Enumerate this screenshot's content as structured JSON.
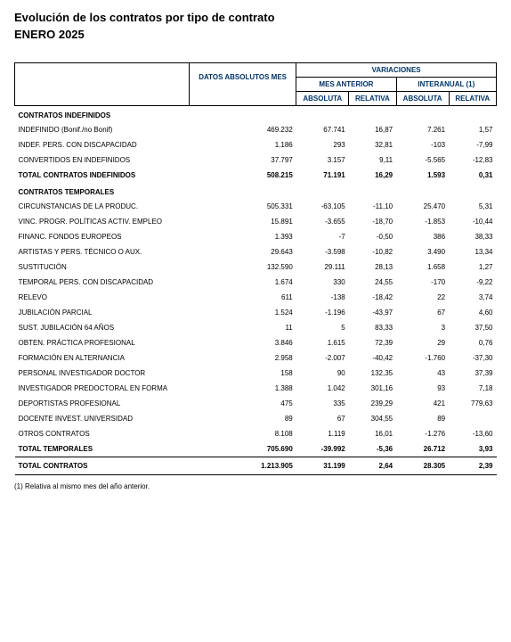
{
  "title": "Evolución de los contratos por tipo de contrato",
  "subtitle": "ENERO 2025",
  "headers": {
    "empty": "",
    "datos": "DATOS ABSOLUTOS MES",
    "variaciones": "VARIACIONES",
    "mes_anterior": "MES ANTERIOR",
    "interanual": "INTERANUAL (1)",
    "absoluta": "ABSOLUTA",
    "relativa": "RELATIVA"
  },
  "sections": {
    "indef_header": "CONTRATOS INDEFINIDOS",
    "temp_header": "CONTRATOS TEMPORALES"
  },
  "rows_indef": [
    {
      "label": "INDEFINIDO (Bonif./no Bonif)",
      "d": "469.232",
      "ma": "67.741",
      "mr": "16,87",
      "ia": "7.261",
      "ir": "1,57"
    },
    {
      "label": "INDEF. PERS. CON DISCAPACIDAD",
      "d": "1.186",
      "ma": "293",
      "mr": "32,81",
      "ia": "-103",
      "ir": "-7,99"
    },
    {
      "label": "CONVERTIDOS EN INDEFINIDOS",
      "d": "37.797",
      "ma": "3.157",
      "mr": "9,11",
      "ia": "-5.565",
      "ir": "-12,83"
    }
  ],
  "total_indef": {
    "label": "TOTAL CONTRATOS INDEFINIDOS",
    "d": "508.215",
    "ma": "71.191",
    "mr": "16,29",
    "ia": "1.593",
    "ir": "0,31"
  },
  "rows_temp": [
    {
      "label": "CIRCUNSTANCIAS DE LA PRODUC.",
      "d": "505.331",
      "ma": "-63.105",
      "mr": "-11,10",
      "ia": "25.470",
      "ir": "5,31"
    },
    {
      "label": "VINC. PROGR. POLÍTICAS ACTIV. EMPLEO",
      "d": "15.891",
      "ma": "-3.655",
      "mr": "-18,70",
      "ia": "-1.853",
      "ir": "-10,44"
    },
    {
      "label": "FINANC. FONDOS EUROPEOS",
      "d": "1.393",
      "ma": "-7",
      "mr": "-0,50",
      "ia": "386",
      "ir": "38,33"
    },
    {
      "label": "ARTISTAS Y PERS. TÉCNICO O AUX.",
      "d": "29.643",
      "ma": "-3.598",
      "mr": "-10,82",
      "ia": "3.490",
      "ir": "13,34"
    },
    {
      "label": "SUSTITUCIÓN",
      "d": "132.590",
      "ma": "29.111",
      "mr": "28,13",
      "ia": "1.658",
      "ir": "1,27"
    },
    {
      "label": "TEMPORAL PERS. CON DISCAPACIDAD",
      "d": "1.674",
      "ma": "330",
      "mr": "24,55",
      "ia": "-170",
      "ir": "-9,22"
    },
    {
      "label": "RELEVO",
      "d": "611",
      "ma": "-138",
      "mr": "-18,42",
      "ia": "22",
      "ir": "3,74"
    },
    {
      "label": "JUBILACIÓN PARCIAL",
      "d": "1.524",
      "ma": "-1.196",
      "mr": "-43,97",
      "ia": "67",
      "ir": "4,60"
    },
    {
      "label": "SUST. JUBILACIÓN 64 AÑOS",
      "d": "11",
      "ma": "5",
      "mr": "83,33",
      "ia": "3",
      "ir": "37,50"
    },
    {
      "label": "OBTEN. PRÁCTICA PROFESIONAL",
      "d": "3.846",
      "ma": "1.615",
      "mr": "72,39",
      "ia": "29",
      "ir": "0,76"
    },
    {
      "label": "FORMACIÓN EN ALTERNANCIA",
      "d": "2.958",
      "ma": "-2.007",
      "mr": "-40,42",
      "ia": "-1.760",
      "ir": "-37,30"
    },
    {
      "label": "PERSONAL INVESTIGADOR DOCTOR",
      "d": "158",
      "ma": "90",
      "mr": "132,35",
      "ia": "43",
      "ir": "37,39"
    },
    {
      "label": "INVESTIGADOR PREDOCTORAL EN FORMA",
      "d": "1.388",
      "ma": "1.042",
      "mr": "301,16",
      "ia": "93",
      "ir": "7,18"
    },
    {
      "label": "DEPORTISTAS PROFESIONAL",
      "d": "475",
      "ma": "335",
      "mr": "239,29",
      "ia": "421",
      "ir": "779,63"
    },
    {
      "label": "DOCENTE INVEST. UNIVERSIDAD",
      "d": "89",
      "ma": "67",
      "mr": "304,55",
      "ia": "89",
      "ir": ""
    },
    {
      "label": "OTROS CONTRATOS",
      "d": "8.108",
      "ma": "1.119",
      "mr": "16,01",
      "ia": "-1.276",
      "ir": "-13,60"
    }
  ],
  "total_temp": {
    "label": "TOTAL TEMPORALES",
    "d": "705.690",
    "ma": "-39.992",
    "mr": "-5,36",
    "ia": "26.712",
    "ir": "3,93"
  },
  "grand_total": {
    "label": "TOTAL CONTRATOS",
    "d": "1.213.905",
    "ma": "31.199",
    "mr": "2,64",
    "ia": "28.305",
    "ir": "2,39"
  },
  "footnote": "(1) Relativa al mismo mes del año anterior."
}
